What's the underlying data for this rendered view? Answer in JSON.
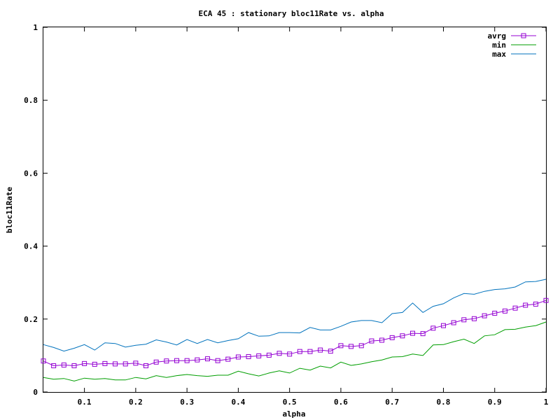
{
  "chart_data": {
    "type": "line",
    "title": "ECA 45 : stationary bloc11Rate vs. alpha",
    "xlabel": "alpha",
    "ylabel": "bloc11Rate",
    "xlim": [
      0.02,
      1.0
    ],
    "ylim": [
      0,
      1
    ],
    "xticks": [
      "0.1",
      "0.2",
      "0.3",
      "0.4",
      "0.5",
      "0.6",
      "0.7",
      "0.8",
      "0.9",
      "1"
    ],
    "yticks": [
      "0",
      "0.2",
      "0.4",
      "0.6",
      "0.8",
      "1"
    ],
    "grid": false,
    "legend_position": "top-right",
    "x": [
      0.02,
      0.04,
      0.06,
      0.08,
      0.1,
      0.12,
      0.14,
      0.16,
      0.18,
      0.2,
      0.22,
      0.24,
      0.26,
      0.28,
      0.3,
      0.32,
      0.34,
      0.36,
      0.38,
      0.4,
      0.42,
      0.44,
      0.46,
      0.48,
      0.5,
      0.52,
      0.54,
      0.56,
      0.58,
      0.6,
      0.62,
      0.64,
      0.66,
      0.68,
      0.7,
      0.72,
      0.74,
      0.76,
      0.78,
      0.8,
      0.82,
      0.84,
      0.86,
      0.88,
      0.9,
      0.92,
      0.94,
      0.96,
      0.98,
      1.0
    ],
    "series": [
      {
        "name": "avrg",
        "color": "#9400d3",
        "marker": "square",
        "values": [
          0.085,
          0.072,
          0.074,
          0.072,
          0.078,
          0.076,
          0.078,
          0.077,
          0.077,
          0.079,
          0.072,
          0.082,
          0.085,
          0.086,
          0.086,
          0.088,
          0.091,
          0.086,
          0.09,
          0.096,
          0.097,
          0.099,
          0.101,
          0.106,
          0.104,
          0.111,
          0.111,
          0.115,
          0.112,
          0.127,
          0.125,
          0.127,
          0.14,
          0.142,
          0.149,
          0.154,
          0.161,
          0.16,
          0.175,
          0.182,
          0.19,
          0.198,
          0.201,
          0.209,
          0.216,
          0.222,
          0.23,
          0.238,
          0.241,
          0.251
        ]
      },
      {
        "name": "min",
        "color": "#009e00",
        "marker": "none",
        "values": [
          0.04,
          0.035,
          0.037,
          0.03,
          0.038,
          0.035,
          0.037,
          0.033,
          0.033,
          0.04,
          0.036,
          0.045,
          0.04,
          0.045,
          0.048,
          0.045,
          0.043,
          0.046,
          0.046,
          0.057,
          0.05,
          0.044,
          0.052,
          0.058,
          0.052,
          0.065,
          0.06,
          0.071,
          0.066,
          0.082,
          0.073,
          0.077,
          0.083,
          0.088,
          0.096,
          0.097,
          0.104,
          0.1,
          0.129,
          0.13,
          0.138,
          0.145,
          0.133,
          0.154,
          0.157,
          0.171,
          0.172,
          0.178,
          0.182,
          0.192
        ]
      },
      {
        "name": "max",
        "color": "#0072bd",
        "marker": "none",
        "values": [
          0.13,
          0.122,
          0.112,
          0.12,
          0.13,
          0.115,
          0.135,
          0.133,
          0.123,
          0.128,
          0.131,
          0.143,
          0.137,
          0.129,
          0.144,
          0.133,
          0.144,
          0.135,
          0.141,
          0.146,
          0.163,
          0.153,
          0.154,
          0.163,
          0.163,
          0.162,
          0.177,
          0.17,
          0.17,
          0.18,
          0.192,
          0.196,
          0.196,
          0.19,
          0.215,
          0.218,
          0.244,
          0.218,
          0.235,
          0.242,
          0.258,
          0.27,
          0.268,
          0.276,
          0.281,
          0.283,
          0.288,
          0.302,
          0.303,
          0.309
        ]
      }
    ]
  }
}
